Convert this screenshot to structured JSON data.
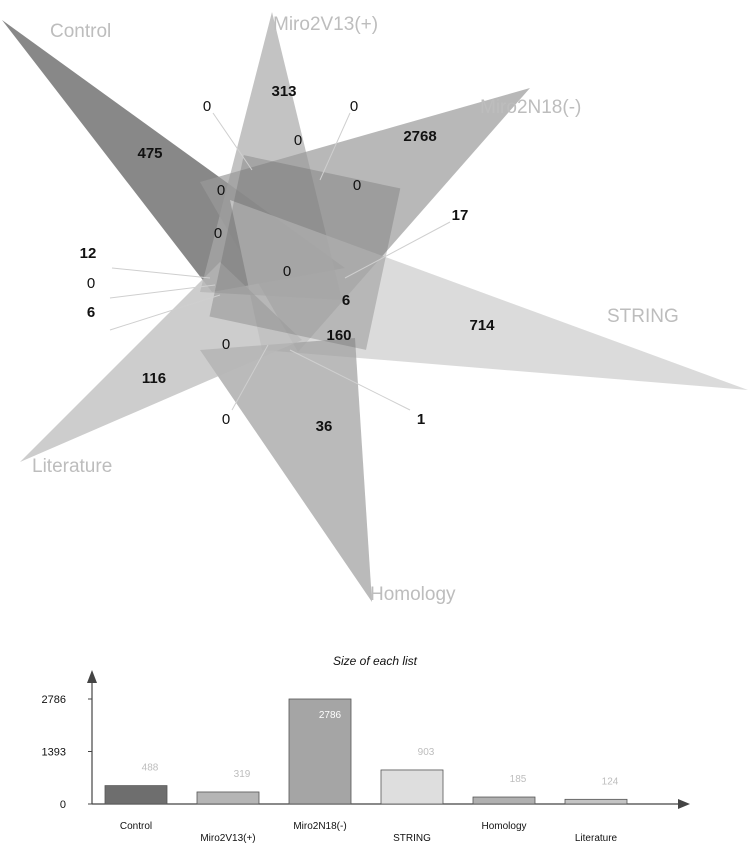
{
  "sets": [
    {
      "label": "Control",
      "color": "#6e6e6e",
      "opacity": 0.82
    },
    {
      "label": "Miro2V13(+)",
      "color": "#a9a9a9",
      "opacity": 0.7
    },
    {
      "label": "Miro2N18(-)",
      "color": "#9a9a9a",
      "opacity": 0.7
    },
    {
      "label": "STRING",
      "color": "#cfcfcf",
      "opacity": 0.75
    },
    {
      "label": "Homology",
      "color": "#a0a0a0",
      "opacity": 0.72
    },
    {
      "label": "Literature",
      "color": "#b8b8b8",
      "opacity": 0.7
    }
  ],
  "region_counts": [
    {
      "value": "475",
      "bold": true
    },
    {
      "value": "313",
      "bold": true
    },
    {
      "value": "2768",
      "bold": true
    },
    {
      "value": "714",
      "bold": true
    },
    {
      "value": "36",
      "bold": true
    },
    {
      "value": "116",
      "bold": true
    },
    {
      "value": "0",
      "bold": false
    },
    {
      "value": "0",
      "bold": false
    },
    {
      "value": "0",
      "bold": false
    },
    {
      "value": "0",
      "bold": false
    },
    {
      "value": "0",
      "bold": false
    },
    {
      "value": "0",
      "bold": false
    },
    {
      "value": "17",
      "bold": true
    },
    {
      "value": "12",
      "bold": true
    },
    {
      "value": "0",
      "bold": false
    },
    {
      "value": "6",
      "bold": true
    },
    {
      "value": "0",
      "bold": false
    },
    {
      "value": "6",
      "bold": true
    },
    {
      "value": "160",
      "bold": true
    },
    {
      "value": "0",
      "bold": false
    },
    {
      "value": "0",
      "bold": false
    },
    {
      "value": "1",
      "bold": true
    }
  ],
  "chart_data": {
    "type": "bar",
    "title": "Size of each list",
    "categories": [
      "Control",
      "Miro2V13(+)",
      "Miro2N18(-)",
      "STRING",
      "Homology",
      "Literature"
    ],
    "values": [
      488,
      319,
      2786,
      903,
      185,
      124
    ],
    "value_labels": [
      "488",
      "319",
      "2786",
      "903",
      "185",
      "124"
    ],
    "ytick_labels": [
      "0",
      "1393",
      "2786"
    ],
    "yticks": [
      0,
      1393,
      2786
    ],
    "ylim": [
      0,
      2786
    ],
    "colors": [
      "#6e6e6e",
      "#b5b5b5",
      "#a5a5a5",
      "#dedede",
      "#b0b0b0",
      "#c4c4c4"
    ],
    "value_label_color": [
      "#bdbdbd",
      "#bdbdbd",
      "#ffffff",
      "#bdbdbd",
      "#bdbdbd",
      "#bdbdbd"
    ],
    "grid": false,
    "legend": false
  }
}
